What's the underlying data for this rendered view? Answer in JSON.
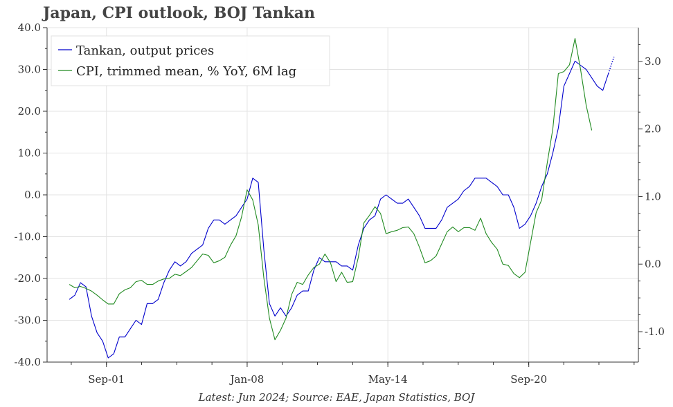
{
  "chart_data": {
    "type": "line",
    "title": "Japan, CPI outlook, BOJ Tankan",
    "source": "Latest: Jun 2024; Source: EAE, Japan Statistics, BOJ",
    "x_tick_labels": [
      "Sep-01",
      "Jan-08",
      "May-14",
      "Sep-20"
    ],
    "x_tick_years": [
      2001.67,
      2008.0,
      2014.33,
      2020.67
    ],
    "x_range": [
      1999.0,
      2025.6
    ],
    "y_left": {
      "range": [
        -40,
        40
      ],
      "ticks": [
        -40,
        -30,
        -20,
        -10,
        0,
        10,
        20,
        30,
        40
      ],
      "tick_labels": [
        "-40.0",
        "-30.0",
        "-20.0",
        "-10.0",
        "0.0",
        "10.0",
        "20.0",
        "30.0",
        "40.0"
      ]
    },
    "y_right": {
      "range": [
        -1.45,
        3.5
      ],
      "ticks": [
        -1,
        0,
        1,
        2,
        3
      ],
      "tick_labels": [
        "-1.0",
        "0.0",
        "1.0",
        "2.0",
        "3.0"
      ]
    },
    "grid": true,
    "legend_position": "top-left",
    "series": [
      {
        "name": "Tankan, output prices",
        "color": "#0000cc",
        "axis": "left",
        "points": [
          [
            2000.0,
            -25
          ],
          [
            2000.25,
            -24
          ],
          [
            2000.5,
            -21
          ],
          [
            2000.75,
            -22
          ],
          [
            2001.0,
            -29
          ],
          [
            2001.25,
            -33
          ],
          [
            2001.5,
            -35
          ],
          [
            2001.75,
            -39
          ],
          [
            2002.0,
            -38
          ],
          [
            2002.25,
            -34
          ],
          [
            2002.5,
            -34
          ],
          [
            2002.75,
            -32
          ],
          [
            2003.0,
            -30
          ],
          [
            2003.25,
            -31
          ],
          [
            2003.5,
            -26
          ],
          [
            2003.75,
            -26
          ],
          [
            2004.0,
            -25
          ],
          [
            2004.25,
            -21
          ],
          [
            2004.5,
            -18
          ],
          [
            2004.75,
            -16
          ],
          [
            2005.0,
            -17
          ],
          [
            2005.25,
            -16
          ],
          [
            2005.5,
            -14
          ],
          [
            2005.75,
            -13
          ],
          [
            2006.0,
            -12
          ],
          [
            2006.25,
            -8
          ],
          [
            2006.5,
            -6
          ],
          [
            2006.75,
            -6
          ],
          [
            2007.0,
            -7
          ],
          [
            2007.25,
            -6
          ],
          [
            2007.5,
            -5
          ],
          [
            2007.75,
            -3
          ],
          [
            2008.0,
            -1
          ],
          [
            2008.25,
            4
          ],
          [
            2008.5,
            3
          ],
          [
            2008.75,
            -13
          ],
          [
            2009.0,
            -26
          ],
          [
            2009.25,
            -29
          ],
          [
            2009.5,
            -27
          ],
          [
            2009.75,
            -29
          ],
          [
            2010.0,
            -27
          ],
          [
            2010.25,
            -24
          ],
          [
            2010.5,
            -23
          ],
          [
            2010.75,
            -23
          ],
          [
            2011.0,
            -18
          ],
          [
            2011.25,
            -15
          ],
          [
            2011.5,
            -16
          ],
          [
            2011.75,
            -16
          ],
          [
            2012.0,
            -16
          ],
          [
            2012.25,
            -17
          ],
          [
            2012.5,
            -17
          ],
          [
            2012.75,
            -18
          ],
          [
            2013.0,
            -12
          ],
          [
            2013.25,
            -8
          ],
          [
            2013.5,
            -6
          ],
          [
            2013.75,
            -5
          ],
          [
            2014.0,
            -1
          ],
          [
            2014.25,
            0
          ],
          [
            2014.5,
            -1
          ],
          [
            2014.75,
            -2
          ],
          [
            2015.0,
            -2
          ],
          [
            2015.25,
            -1
          ],
          [
            2015.5,
            -3
          ],
          [
            2015.75,
            -5
          ],
          [
            2016.0,
            -8
          ],
          [
            2016.25,
            -8
          ],
          [
            2016.5,
            -8
          ],
          [
            2016.75,
            -6
          ],
          [
            2017.0,
            -3
          ],
          [
            2017.25,
            -2
          ],
          [
            2017.5,
            -1
          ],
          [
            2017.75,
            1
          ],
          [
            2018.0,
            2
          ],
          [
            2018.25,
            4
          ],
          [
            2018.5,
            4
          ],
          [
            2018.75,
            4
          ],
          [
            2019.0,
            3
          ],
          [
            2019.25,
            2
          ],
          [
            2019.5,
            0
          ],
          [
            2019.75,
            0
          ],
          [
            2020.0,
            -3
          ],
          [
            2020.25,
            -8
          ],
          [
            2020.5,
            -7
          ],
          [
            2020.75,
            -5
          ],
          [
            2021.0,
            -2
          ],
          [
            2021.25,
            2
          ],
          [
            2021.5,
            5
          ],
          [
            2021.75,
            10
          ],
          [
            2022.0,
            16
          ],
          [
            2022.25,
            26
          ],
          [
            2022.5,
            29
          ],
          [
            2022.75,
            32
          ],
          [
            2023.0,
            31
          ],
          [
            2023.25,
            30
          ],
          [
            2023.5,
            28
          ],
          [
            2023.75,
            26
          ],
          [
            2024.0,
            25
          ],
          [
            2024.25,
            29
          ]
        ],
        "dotted_extension": [
          [
            2024.25,
            29
          ],
          [
            2024.5,
            33
          ]
        ]
      },
      {
        "name": "CPI, trimmed mean, % YoY, 6M lag",
        "color": "#228b22",
        "axis": "right",
        "points": [
          [
            2000.0,
            -0.3
          ],
          [
            2000.25,
            -0.35
          ],
          [
            2000.5,
            -0.33
          ],
          [
            2000.75,
            -0.36
          ],
          [
            2001.0,
            -0.4
          ],
          [
            2001.25,
            -0.46
          ],
          [
            2001.5,
            -0.53
          ],
          [
            2001.75,
            -0.59
          ],
          [
            2002.0,
            -0.59
          ],
          [
            2002.25,
            -0.44
          ],
          [
            2002.5,
            -0.38
          ],
          [
            2002.75,
            -0.35
          ],
          [
            2003.0,
            -0.26
          ],
          [
            2003.25,
            -0.24
          ],
          [
            2003.5,
            -0.3
          ],
          [
            2003.75,
            -0.3
          ],
          [
            2004.0,
            -0.25
          ],
          [
            2004.25,
            -0.22
          ],
          [
            2004.5,
            -0.21
          ],
          [
            2004.75,
            -0.15
          ],
          [
            2005.0,
            -0.17
          ],
          [
            2005.25,
            -0.11
          ],
          [
            2005.5,
            -0.05
          ],
          [
            2005.75,
            0.05
          ],
          [
            2006.0,
            0.15
          ],
          [
            2006.25,
            0.13
          ],
          [
            2006.5,
            0.02
          ],
          [
            2006.75,
            0.05
          ],
          [
            2007.0,
            0.1
          ],
          [
            2007.25,
            0.28
          ],
          [
            2007.5,
            0.42
          ],
          [
            2007.75,
            0.7
          ],
          [
            2008.0,
            1.1
          ],
          [
            2008.25,
            0.95
          ],
          [
            2008.5,
            0.58
          ],
          [
            2008.75,
            -0.2
          ],
          [
            2009.0,
            -0.8
          ],
          [
            2009.25,
            -1.12
          ],
          [
            2009.5,
            -0.98
          ],
          [
            2009.75,
            -0.8
          ],
          [
            2010.0,
            -0.45
          ],
          [
            2010.25,
            -0.27
          ],
          [
            2010.5,
            -0.3
          ],
          [
            2010.75,
            -0.16
          ],
          [
            2011.0,
            -0.05
          ],
          [
            2011.25,
            0.0
          ],
          [
            2011.5,
            0.15
          ],
          [
            2011.75,
            0.02
          ],
          [
            2012.0,
            -0.26
          ],
          [
            2012.25,
            -0.12
          ],
          [
            2012.5,
            -0.27
          ],
          [
            2012.75,
            -0.26
          ],
          [
            2013.0,
            0.1
          ],
          [
            2013.25,
            0.61
          ],
          [
            2013.5,
            0.72
          ],
          [
            2013.75,
            0.85
          ],
          [
            2014.0,
            0.75
          ],
          [
            2014.25,
            0.45
          ],
          [
            2014.5,
            0.48
          ],
          [
            2014.75,
            0.5
          ],
          [
            2015.0,
            0.54
          ],
          [
            2015.25,
            0.55
          ],
          [
            2015.5,
            0.45
          ],
          [
            2015.75,
            0.25
          ],
          [
            2016.0,
            0.02
          ],
          [
            2016.25,
            0.05
          ],
          [
            2016.5,
            0.12
          ],
          [
            2016.75,
            0.3
          ],
          [
            2017.0,
            0.48
          ],
          [
            2017.25,
            0.55
          ],
          [
            2017.5,
            0.48
          ],
          [
            2017.75,
            0.54
          ],
          [
            2018.0,
            0.54
          ],
          [
            2018.25,
            0.5
          ],
          [
            2018.5,
            0.68
          ],
          [
            2018.75,
            0.45
          ],
          [
            2019.0,
            0.32
          ],
          [
            2019.25,
            0.22
          ],
          [
            2019.5,
            0.0
          ],
          [
            2019.75,
            -0.02
          ],
          [
            2020.0,
            -0.14
          ],
          [
            2020.25,
            -0.2
          ],
          [
            2020.5,
            -0.12
          ],
          [
            2020.75,
            0.32
          ],
          [
            2021.0,
            0.76
          ],
          [
            2021.25,
            0.95
          ],
          [
            2021.5,
            1.5
          ],
          [
            2021.75,
            2.0
          ],
          [
            2022.0,
            2.82
          ],
          [
            2022.25,
            2.85
          ],
          [
            2022.5,
            2.95
          ],
          [
            2022.75,
            3.34
          ],
          [
            2023.0,
            2.88
          ],
          [
            2023.25,
            2.35
          ],
          [
            2023.5,
            1.98
          ]
        ]
      }
    ]
  }
}
